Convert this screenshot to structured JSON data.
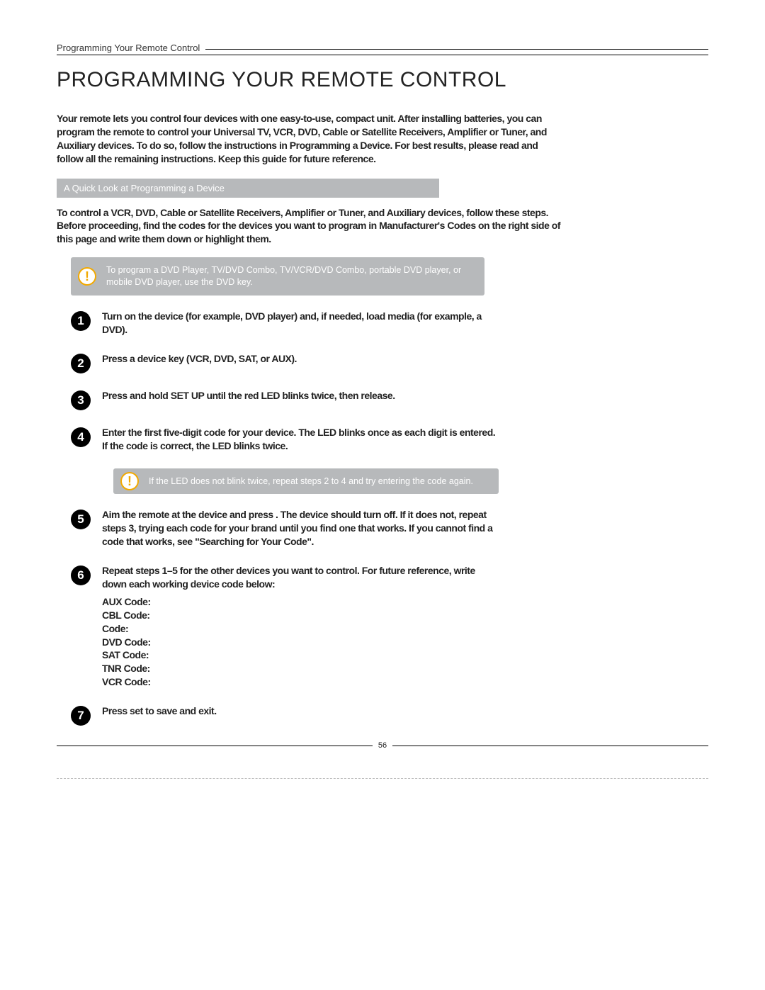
{
  "header_label": "Programming Your Remote Control",
  "title": "PROGRAMMING YOUR REMOTE CONTROL",
  "intro": "Your remote lets you control four devices with one easy-to-use, compact unit. After installing batteries, you can program the remote to control your Universal TV, VCR, DVD, Cable or Satellite Receivers, Amplifier or Tuner, and Auxiliary devices. To do so, follow the instructions in Programming a Device. For best results, please read and follow all the remaining instructions. Keep this guide for future reference.",
  "quicklook": "A Quick Look at Programming a Device",
  "subintro": "To control a VCR, DVD, Cable or Satellite Receivers, Amplifier or Tuner, and Auxiliary devices, follow these steps. Before proceeding, find the codes for the devices you want to program in Manufacturer's Codes on the right side of this page and write them down or highlight them.",
  "note1": "To program a DVD Player, TV/DVD Combo, TV/VCR/DVD Combo, portable DVD player, or mobile DVD player, use the DVD key.",
  "steps": [
    "Turn on the device (for example, DVD player) and, if needed, load media (for example, a DVD).",
    "Press a device key (VCR, DVD, SAT, or AUX).",
    "Press and hold SET UP until the red LED blinks twice, then release.",
    "Enter the first five-digit code for your device. The LED blinks once as each digit is entered. If the code is correct, the LED blinks twice."
  ],
  "note2": "If the LED does not blink twice, repeat steps 2 to 4 and try entering the code again.",
  "step5": "Aim the remote at the device and press . The device should turn off. If it does not, repeat steps 3, trying each code for your brand until you find one that works. If you cannot find a code that works, see \"Searching for Your Code\".",
  "step6_lead": "Repeat steps 1–5 for the other devices you want to control. For future reference, write down each working device code below:",
  "devices": [
    "AUX Code:",
    "CBL Code:",
    "Code:",
    "DVD Code:",
    "SAT Code:",
    "TNR Code:",
    "VCR Code:"
  ],
  "step7": "Press set to save and exit.",
  "page_num": "56"
}
